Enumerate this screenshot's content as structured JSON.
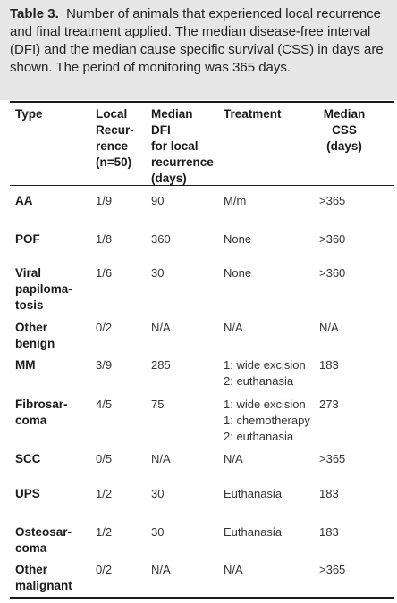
{
  "caption": {
    "label": "Table 3.",
    "text": "Number of animals that experienced local recurrence and final treatment applied. The median disease-free interval (DFI) and the median cause specific survival (CSS) in days are shown. The period of monitoring was 365 days."
  },
  "table": {
    "headers": [
      "Type",
      "Local\nRecur-\nrence\n(n=50)",
      "Median\nDFI\nfor local\nrecurrence\n(days)",
      "Treatment",
      "Median\nCSS\n(days)"
    ],
    "rows": [
      [
        "AA",
        "1/9",
        "90",
        "M/m",
        ">365"
      ],
      [
        "POF",
        "1/8",
        "360",
        "None",
        ">360"
      ],
      [
        "Viral\npapiloma-\ntosis",
        "1/6",
        "30",
        "None",
        ">360"
      ],
      [
        "Other\nbenign",
        "0/2",
        "N/A",
        "N/A",
        "N/A"
      ],
      [
        "MM",
        "3/9",
        "285",
        "1: wide excision\n2: euthanasia",
        "183"
      ],
      [
        "Fibrosar-\ncoma",
        "4/5",
        "75",
        "1: wide excision\n1: chemotherapy\n2: euthanasia",
        "273"
      ],
      [
        "SCC",
        "0/5",
        "N/A",
        "N/A",
        ">365"
      ],
      [
        "UPS",
        "1/2",
        "30",
        "Euthanasia",
        "183"
      ],
      [
        "Osteosar-\ncoma",
        "1/2",
        "30",
        "Euthanasia",
        "183"
      ],
      [
        "Other\nmalignant",
        "0/2",
        "N/A",
        "N/A",
        ">365"
      ]
    ]
  }
}
